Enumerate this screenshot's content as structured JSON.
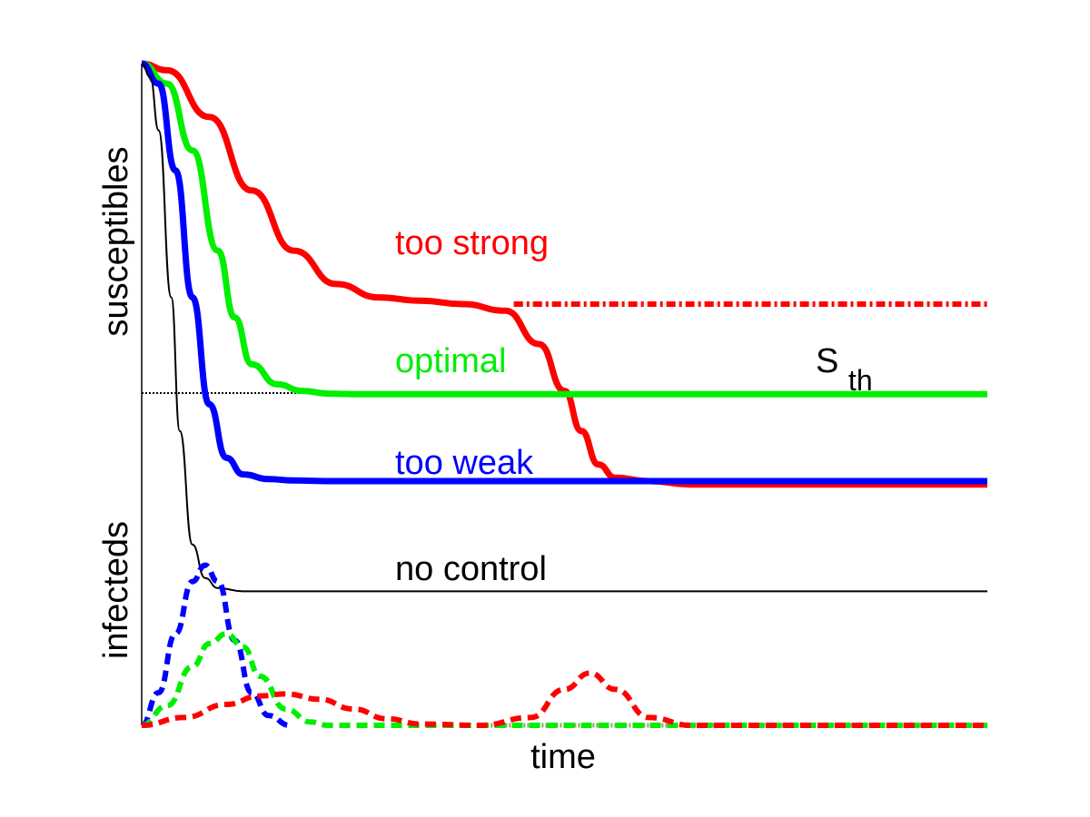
{
  "chart_data": {
    "type": "line",
    "title": "",
    "xlabel": "time",
    "ylabel_upper": "susceptibles",
    "ylabel_lower": "infecteds",
    "threshold": {
      "label": "S",
      "subscript": "th",
      "value": 0.5
    },
    "xlim": [
      0,
      1
    ],
    "ylim": [
      -0.4,
      1
    ],
    "grid": false,
    "ticks": false,
    "colors": {
      "red": "#ff0000",
      "green": "#00ee00",
      "blue": "#0000ff",
      "black": "#000000"
    },
    "series": [
      {
        "name": "too strong",
        "color": "#ff0000",
        "kind": "susceptible",
        "x": [
          0.0,
          0.03,
          0.08,
          0.13,
          0.18,
          0.23,
          0.28,
          0.33,
          0.38,
          0.43,
          0.47,
          0.5,
          0.52,
          0.54,
          0.56,
          0.6,
          0.65,
          1.0
        ],
        "y": [
          1.0,
          0.99,
          0.92,
          0.81,
          0.72,
          0.67,
          0.65,
          0.645,
          0.64,
          0.63,
          0.58,
          0.51,
          0.45,
          0.4,
          0.38,
          0.375,
          0.37,
          0.37
        ],
        "no_control_x": [
          0.44,
          1.0
        ],
        "no_control_y": [
          0.64,
          0.64
        ]
      },
      {
        "name": "optimal",
        "color": "#00ee00",
        "kind": "susceptible",
        "x": [
          0.0,
          0.03,
          0.06,
          0.09,
          0.11,
          0.13,
          0.16,
          0.19,
          0.22,
          0.26,
          1.0
        ],
        "y": [
          1.0,
          0.97,
          0.87,
          0.72,
          0.62,
          0.55,
          0.52,
          0.51,
          0.506,
          0.505,
          0.505
        ]
      },
      {
        "name": "too weak",
        "color": "#0000ff",
        "kind": "susceptible",
        "x": [
          0.0,
          0.02,
          0.04,
          0.06,
          0.08,
          0.1,
          0.12,
          0.15,
          0.18,
          0.22,
          1.0
        ],
        "y": [
          1.0,
          0.97,
          0.84,
          0.65,
          0.49,
          0.41,
          0.385,
          0.378,
          0.376,
          0.375,
          0.375
        ]
      },
      {
        "name": "no control",
        "color": "#000000",
        "kind": "susceptible",
        "x": [
          0.0,
          0.01,
          0.02,
          0.035,
          0.045,
          0.06,
          0.075,
          0.09,
          0.12,
          0.15,
          1.0
        ],
        "y": [
          1.0,
          0.98,
          0.9,
          0.65,
          0.45,
          0.28,
          0.23,
          0.215,
          0.21,
          0.21,
          0.21
        ]
      },
      {
        "name": "",
        "color": "#0000ff",
        "kind": "infected",
        "x": [
          0.0,
          0.02,
          0.04,
          0.06,
          0.075,
          0.09,
          0.11,
          0.13,
          0.15,
          0.175
        ],
        "y": [
          0.0,
          0.05,
          0.14,
          0.22,
          0.245,
          0.22,
          0.13,
          0.05,
          0.015,
          0.0
        ]
      },
      {
        "name": "",
        "color": "#00ee00",
        "kind": "infected",
        "x": [
          0.0,
          0.03,
          0.06,
          0.08,
          0.1,
          0.12,
          0.14,
          0.17,
          0.2,
          0.22,
          1.0
        ],
        "y": [
          0.0,
          0.03,
          0.09,
          0.125,
          0.14,
          0.12,
          0.075,
          0.025,
          0.005,
          0.0,
          0.0
        ]
      },
      {
        "name": "",
        "color": "#ff0000",
        "kind": "infected",
        "x": [
          0.0,
          0.05,
          0.1,
          0.14,
          0.17,
          0.21,
          0.25,
          0.29,
          0.33,
          0.4,
          0.46,
          0.5,
          0.53,
          0.56,
          0.6,
          0.65,
          1.0
        ],
        "y": [
          0.0,
          0.012,
          0.032,
          0.045,
          0.048,
          0.04,
          0.025,
          0.01,
          0.002,
          0.0,
          0.012,
          0.055,
          0.08,
          0.055,
          0.012,
          0.0,
          0.0
        ]
      }
    ],
    "labels": [
      {
        "text": "too strong",
        "color": "#ff0000"
      },
      {
        "text": "optimal",
        "color": "#00ee00"
      },
      {
        "text": "too weak",
        "color": "#0000ff"
      },
      {
        "text": "no control",
        "color": "#000000"
      }
    ]
  }
}
